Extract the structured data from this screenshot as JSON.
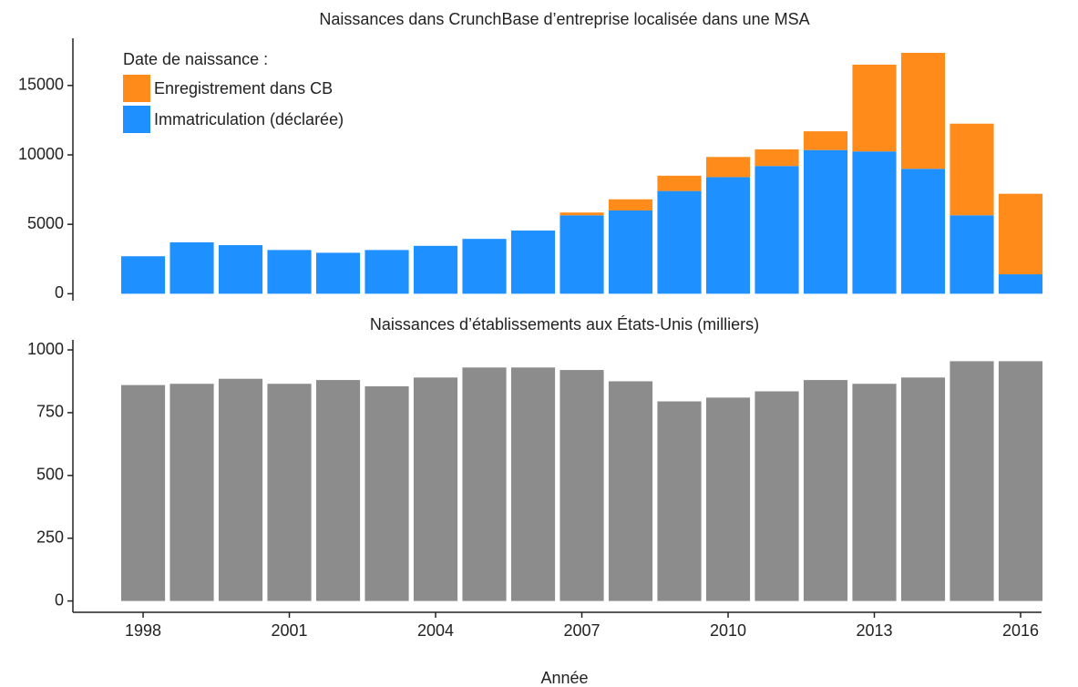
{
  "chart_data": [
    {
      "type": "bar",
      "stacked": true,
      "title": "Naissances dans CrunchBase d’entreprise localisée dans une MSA",
      "legend_title": "Date de naissance :",
      "legend": "top-left",
      "x": [
        1998,
        1999,
        2000,
        2001,
        2002,
        2003,
        2004,
        2005,
        2006,
        2007,
        2008,
        2009,
        2010,
        2011,
        2012,
        2013,
        2014,
        2015,
        2016
      ],
      "xlim": [
        1996.56,
        2016.43
      ],
      "series": [
        {
          "name": "Immatriculation (déclarée)",
          "color": "#1e90ff",
          "values": [
            2700,
            3700,
            3500,
            3150,
            2950,
            3150,
            3450,
            3950,
            4550,
            5650,
            6000,
            7400,
            8400,
            9200,
            10350,
            10250,
            9000,
            5650,
            1400
          ]
        },
        {
          "name": "Enregistrement dans CB",
          "color": "#ff8c1a",
          "values": [
            0,
            0,
            0,
            0,
            0,
            0,
            0,
            0,
            0,
            200,
            800,
            1100,
            1450,
            1200,
            1350,
            6250,
            8350,
            6600,
            5800
          ]
        }
      ],
      "ylim": [
        -500,
        18400
      ],
      "yticks": [
        0,
        5000,
        10000,
        15000
      ]
    },
    {
      "type": "bar",
      "stacked": false,
      "title": "Naissances d’établissements aux États-Unis (milliers)",
      "x": [
        1998,
        1999,
        2000,
        2001,
        2002,
        2003,
        2004,
        2005,
        2006,
        2007,
        2008,
        2009,
        2010,
        2011,
        2012,
        2013,
        2014,
        2015,
        2016
      ],
      "xlim": [
        1996.56,
        2016.43
      ],
      "xticks": [
        1998,
        2001,
        2004,
        2007,
        2010,
        2013,
        2016
      ],
      "xlabel": "Année",
      "series": [
        {
          "color": "#8c8c8c",
          "values": [
            860,
            865,
            885,
            865,
            880,
            855,
            890,
            930,
            930,
            920,
            875,
            795,
            810,
            835,
            880,
            865,
            890,
            955,
            955
          ]
        }
      ],
      "ylim": [
        -45,
        1040
      ],
      "yticks": [
        0,
        250,
        500,
        750,
        1000
      ]
    }
  ]
}
